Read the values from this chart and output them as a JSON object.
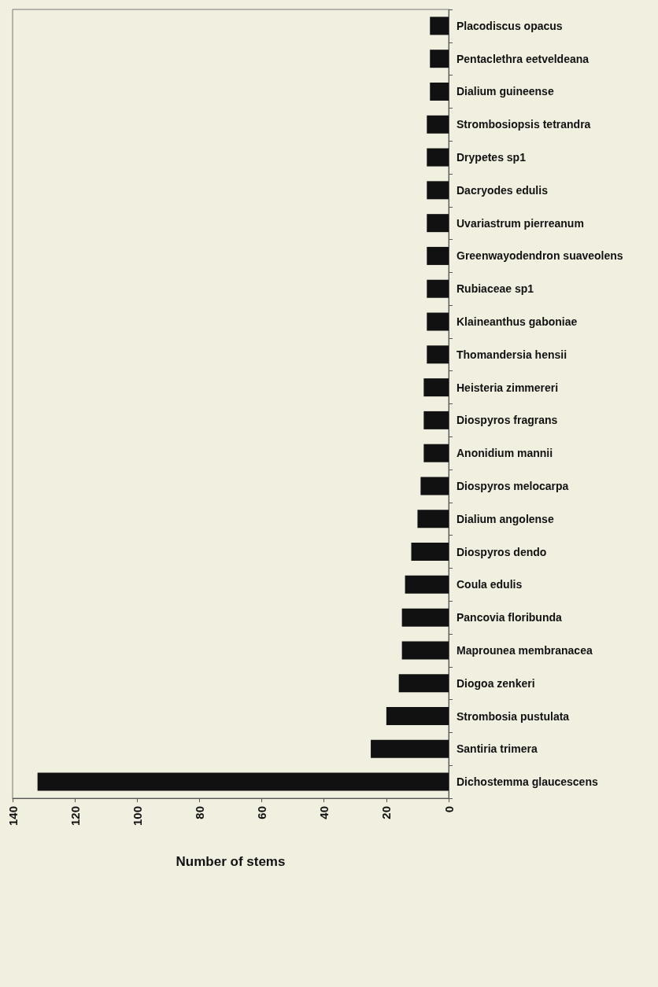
{
  "chart_data": {
    "type": "bar",
    "orientation": "horizontal",
    "xlabel": "Number of stems",
    "categories": [
      "Placodiscus opacus",
      "Pentaclethra eetveldeana",
      "Dialium guineense",
      "Strombosiopsis tetrandra",
      "Drypetes sp1",
      "Dacryodes edulis",
      "Uvariastrum pierreanum",
      "Greenwayodendron suaveolens",
      "Rubiaceae sp1",
      "Klaineanthus gaboniae",
      "Thomandersia hensii",
      "Heisteria zimmereri",
      "Diospyros fragrans",
      "Anonidium mannii",
      "Diospyros melocarpa",
      "Dialium angolense",
      "Diospyros dendo",
      "Coula edulis",
      "Pancovia floribunda",
      "Maprounea membranacea",
      "Diogoa zenkeri",
      "Strombosia pustulata",
      "Santiria trimera",
      "Dichostemma glaucescens"
    ],
    "values": [
      6,
      6,
      6,
      7,
      7,
      7,
      7,
      7,
      7,
      7,
      7,
      8,
      8,
      8,
      9,
      10,
      12,
      14,
      15,
      15,
      16,
      20,
      25,
      132
    ],
    "color": "#111111",
    "xlim": [
      140,
      0
    ],
    "xticks": [
      0,
      20,
      40,
      60,
      80,
      100,
      120,
      140
    ],
    "grid": false
  }
}
